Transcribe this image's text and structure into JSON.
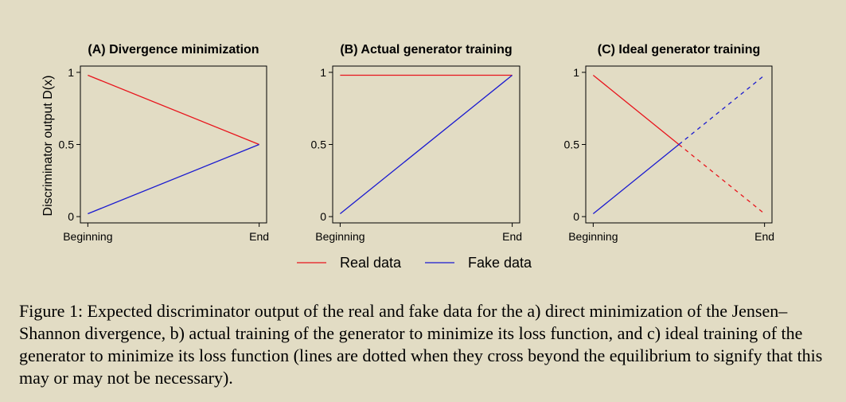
{
  "chart_data": [
    {
      "type": "line",
      "title": "(A) Divergence minimization",
      "xlabel": "",
      "ylabel": "Discriminator output D(x)",
      "x_ticks": [
        "Beginning",
        "End"
      ],
      "y_ticks": [
        "0",
        "0.5",
        "1"
      ],
      "ylim": [
        0,
        1
      ],
      "series": [
        {
          "name": "Real data",
          "color": "#e8141c",
          "points": [
            [
              0,
              0.98
            ],
            [
              1,
              0.5
            ]
          ],
          "dashed_from": null
        },
        {
          "name": "Fake data",
          "color": "#1a1ad0",
          "points": [
            [
              0,
              0.02
            ],
            [
              1,
              0.5
            ]
          ],
          "dashed_from": null
        }
      ]
    },
    {
      "type": "line",
      "title": "(B) Actual generator training",
      "xlabel": "",
      "ylabel": "",
      "x_ticks": [
        "Beginning",
        "End"
      ],
      "y_ticks": [
        "0",
        "0.5",
        "1"
      ],
      "ylim": [
        0,
        1
      ],
      "series": [
        {
          "name": "Real data",
          "color": "#e8141c",
          "points": [
            [
              0,
              0.98
            ],
            [
              1,
              0.98
            ]
          ],
          "dashed_from": null
        },
        {
          "name": "Fake data",
          "color": "#1a1ad0",
          "points": [
            [
              0,
              0.02
            ],
            [
              1,
              0.98
            ]
          ],
          "dashed_from": null
        }
      ]
    },
    {
      "type": "line",
      "title": "(C) Ideal generator training",
      "xlabel": "",
      "ylabel": "",
      "x_ticks": [
        "Beginning",
        "End"
      ],
      "y_ticks": [
        "0",
        "0.5",
        "1"
      ],
      "ylim": [
        0,
        1
      ],
      "series": [
        {
          "name": "Real data",
          "color": "#e8141c",
          "points": [
            [
              0,
              0.98
            ],
            [
              0.5,
              0.5
            ],
            [
              1,
              0.02
            ]
          ],
          "dashed_from": 0.5
        },
        {
          "name": "Fake data",
          "color": "#1a1ad0",
          "points": [
            [
              0,
              0.02
            ],
            [
              0.5,
              0.5
            ],
            [
              1,
              0.98
            ]
          ],
          "dashed_from": 0.5
        }
      ]
    }
  ],
  "legend": [
    {
      "label": "Real data",
      "color": "#e8141c"
    },
    {
      "label": "Fake data",
      "color": "#1a1ad0"
    }
  ],
  "caption": "Figure 1: Expected discriminator output of the real and fake data for the a) direct minimization of the Jensen–Shannon divergence, b) actual training of the generator to minimize its loss function, and c) ideal training of the generator to minimize its loss function (lines are dotted when they cross beyond the equilibrium to signify that this may or may not be necessary)."
}
